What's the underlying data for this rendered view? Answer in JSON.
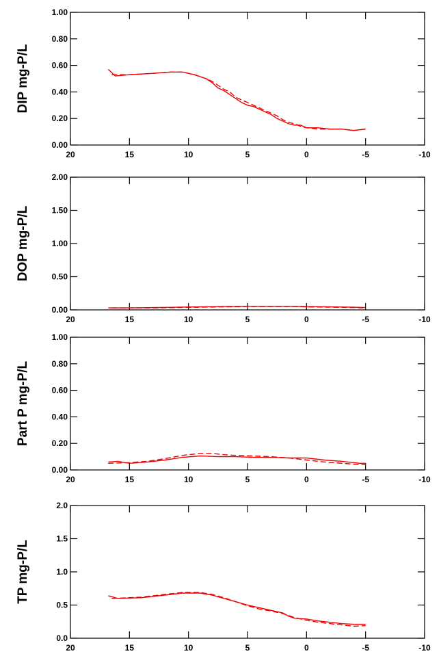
{
  "chart_data": [
    {
      "type": "line",
      "ylabel": "DIP mg-P/L",
      "xlim": [
        20,
        -10
      ],
      "ylim": [
        0,
        1.0
      ],
      "xticks": [
        "20",
        "15",
        "10",
        "5",
        "0",
        "-5",
        "-10"
      ],
      "yticks": [
        "0.00",
        "0.20",
        "0.40",
        "0.60",
        "0.80",
        "1.00"
      ],
      "colors": {
        "series": "#ee0000"
      },
      "series": [
        {
          "style": "solid",
          "x": [
            16.8,
            16.2,
            15,
            13,
            11.5,
            10.5,
            9.5,
            8.5,
            8,
            7.5,
            7,
            6.5,
            6,
            5.5,
            5,
            4.5,
            4,
            3.5,
            3,
            2.5,
            2,
            1.5,
            1,
            0.5,
            0,
            -1,
            -2,
            -3,
            -4,
            -5
          ],
          "y": [
            0.57,
            0.52,
            0.53,
            0.54,
            0.55,
            0.55,
            0.53,
            0.5,
            0.47,
            0.43,
            0.41,
            0.38,
            0.35,
            0.32,
            0.3,
            0.29,
            0.27,
            0.25,
            0.23,
            0.2,
            0.18,
            0.16,
            0.15,
            0.15,
            0.13,
            0.13,
            0.12,
            0.12,
            0.11,
            0.12
          ]
        },
        {
          "style": "dashed",
          "x": [
            16.5,
            15,
            13,
            11.5,
            10.5,
            9.5,
            8.5,
            8,
            7.5,
            7,
            6.5,
            6,
            5.5,
            5,
            4.5,
            4,
            3.5,
            3,
            2.5,
            2,
            1.5,
            1,
            0.5,
            0,
            -1,
            -2,
            -3,
            -4,
            -5
          ],
          "y": [
            0.53,
            0.53,
            0.54,
            0.55,
            0.55,
            0.53,
            0.5,
            0.48,
            0.45,
            0.42,
            0.4,
            0.36,
            0.34,
            0.32,
            0.3,
            0.28,
            0.26,
            0.24,
            0.22,
            0.19,
            0.17,
            0.16,
            0.14,
            0.13,
            0.12,
            0.12,
            0.12,
            0.11,
            0.12
          ]
        }
      ]
    },
    {
      "type": "line",
      "ylabel": "DOP mg-P/L",
      "xlim": [
        20,
        -10
      ],
      "ylim": [
        0,
        2.0
      ],
      "xticks": [
        "20",
        "15",
        "10",
        "5",
        "0",
        "-5",
        "-10"
      ],
      "yticks": [
        "0.00",
        "0.50",
        "1.00",
        "1.50",
        "2.00"
      ],
      "colors": {
        "series": "#ee0000"
      },
      "series": [
        {
          "style": "solid",
          "x": [
            16.8,
            15,
            13,
            11,
            9,
            7,
            5,
            3,
            1,
            0,
            -2,
            -4,
            -5
          ],
          "y": [
            0.03,
            0.03,
            0.035,
            0.04,
            0.045,
            0.05,
            0.055,
            0.055,
            0.055,
            0.05,
            0.045,
            0.04,
            0.035
          ]
        },
        {
          "style": "dashed",
          "x": [
            16.5,
            15,
            13,
            11,
            9,
            7,
            5,
            3,
            1,
            0,
            -2,
            -4,
            -5
          ],
          "y": [
            0.03,
            0.03,
            0.03,
            0.035,
            0.04,
            0.045,
            0.05,
            0.05,
            0.05,
            0.045,
            0.04,
            0.035,
            0.03
          ]
        }
      ]
    },
    {
      "type": "line",
      "ylabel": "Part P mg-P/L",
      "xlim": [
        20,
        -10
      ],
      "ylim": [
        0,
        1.0
      ],
      "xticks": [
        "20",
        "15",
        "10",
        "5",
        "0",
        "-5",
        "-10"
      ],
      "yticks": [
        "0.00",
        "0.20",
        "0.40",
        "0.60",
        "0.80",
        "1.00"
      ],
      "colors": {
        "series": "#ee0000"
      },
      "series": [
        {
          "style": "solid",
          "x": [
            16.8,
            16,
            15,
            13.5,
            12,
            10.5,
            9,
            7.5,
            6,
            4.5,
            3,
            1.5,
            0,
            -1.5,
            -3,
            -4.5,
            -5
          ],
          "y": [
            0.06,
            0.065,
            0.05,
            0.06,
            0.075,
            0.095,
            0.105,
            0.1,
            0.1,
            0.095,
            0.095,
            0.09,
            0.09,
            0.075,
            0.065,
            0.05,
            0.05
          ]
        },
        {
          "style": "dashed",
          "x": [
            16.8,
            15,
            13.5,
            12,
            10.5,
            9,
            8,
            7,
            6,
            4.5,
            3,
            1.5,
            0,
            -1.5,
            -3,
            -4.5,
            -5
          ],
          "y": [
            0.05,
            0.055,
            0.065,
            0.085,
            0.11,
            0.125,
            0.125,
            0.115,
            0.11,
            0.105,
            0.1,
            0.09,
            0.075,
            0.06,
            0.05,
            0.04,
            0.04
          ]
        }
      ]
    },
    {
      "type": "line",
      "ylabel": "TP mg-P/L",
      "xlim": [
        20,
        -10
      ],
      "ylim": [
        0,
        2.0
      ],
      "xticks": [
        "20",
        "15",
        "10",
        "5",
        "0",
        "-5",
        "-10"
      ],
      "yticks": [
        "0.0",
        "0.5",
        "1.0",
        "1.5",
        "2.0"
      ],
      "colors": {
        "series": "#ee0000"
      },
      "series": [
        {
          "style": "solid",
          "x": [
            16.8,
            16,
            14,
            12,
            10.5,
            9,
            8,
            7,
            6,
            5,
            4,
            3,
            2,
            1.5,
            1,
            0,
            -1,
            -2,
            -3,
            -4,
            -5
          ],
          "y": [
            0.64,
            0.6,
            0.61,
            0.65,
            0.68,
            0.68,
            0.65,
            0.6,
            0.55,
            0.5,
            0.46,
            0.42,
            0.38,
            0.33,
            0.3,
            0.29,
            0.26,
            0.24,
            0.22,
            0.21,
            0.21
          ]
        },
        {
          "style": "dashed",
          "x": [
            16.5,
            14,
            12,
            10.5,
            9,
            8,
            7,
            6,
            5,
            4,
            3,
            2,
            1,
            0,
            -1,
            -2,
            -3,
            -4,
            -5
          ],
          "y": [
            0.6,
            0.62,
            0.66,
            0.69,
            0.69,
            0.66,
            0.61,
            0.55,
            0.49,
            0.44,
            0.41,
            0.37,
            0.31,
            0.27,
            0.24,
            0.22,
            0.2,
            0.18,
            0.19
          ]
        }
      ]
    }
  ]
}
